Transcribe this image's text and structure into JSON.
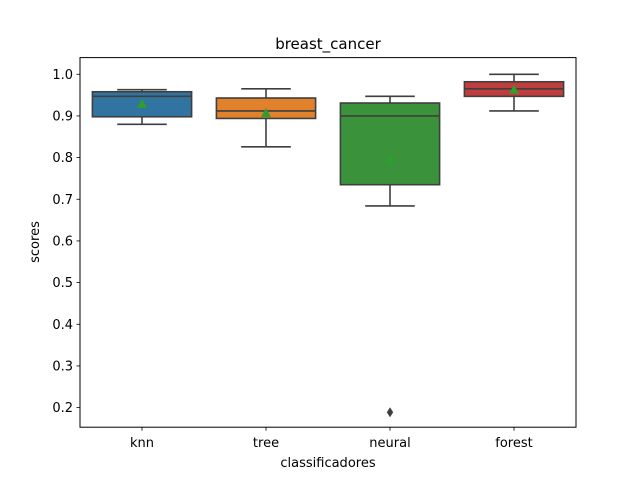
{
  "chart_data": {
    "type": "boxplot",
    "title": "breast_cancer",
    "xlabel": "classificadores",
    "ylabel": "scores",
    "ylim": [
      0.153,
      1.04
    ],
    "yticks": [
      "0.2",
      "0.3",
      "0.4",
      "0.5",
      "0.6",
      "0.7",
      "0.8",
      "0.9",
      "1.0"
    ],
    "categories": [
      "knn",
      "tree",
      "neural",
      "forest"
    ],
    "series": [
      {
        "name": "knn",
        "color": "#3274a1",
        "whisker_low": 0.88,
        "q1": 0.898,
        "median": 0.947,
        "q3": 0.958,
        "whisker_high": 0.963,
        "mean": 0.929,
        "outliers": []
      },
      {
        "name": "tree",
        "color": "#e1812c",
        "whisker_low": 0.826,
        "q1": 0.894,
        "median": 0.912,
        "q3": 0.943,
        "whisker_high": 0.965,
        "mean": 0.907,
        "outliers": []
      },
      {
        "name": "neural",
        "color": "#3a923a",
        "whisker_low": 0.684,
        "q1": 0.735,
        "median": 0.9,
        "q3": 0.931,
        "whisker_high": 0.947,
        "mean": 0.796,
        "outliers": [
          0.189
        ]
      },
      {
        "name": "forest",
        "color": "#c03d3e",
        "whisker_low": 0.912,
        "q1": 0.947,
        "median": 0.965,
        "q3": 0.982,
        "whisker_high": 1.0,
        "mean": 0.963,
        "outliers": []
      }
    ],
    "mean_marker_color": "#2ca02c",
    "line_color": "#3f3f3f"
  }
}
